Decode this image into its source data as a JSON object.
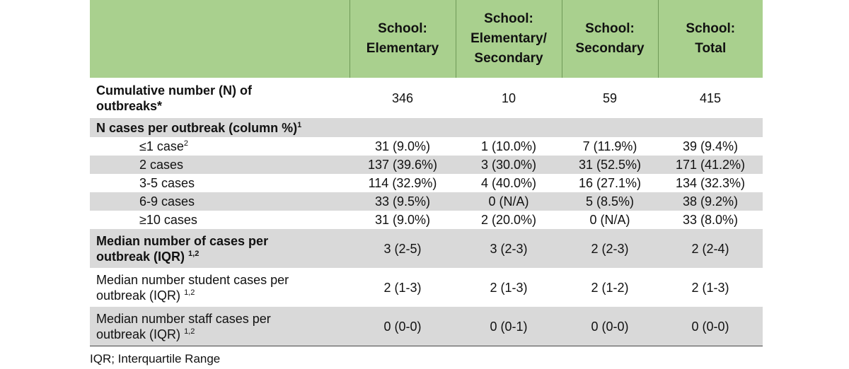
{
  "columns": [
    "",
    "School: Elementary",
    "School: Elementary/ Secondary",
    "School: Secondary",
    "School: Total"
  ],
  "header_lines": [
    [],
    [
      "School:",
      "Elementary"
    ],
    [
      "School:",
      "Elementary/",
      "Secondary"
    ],
    [
      "School:",
      "Secondary"
    ],
    [
      "School:",
      "Total"
    ]
  ],
  "rows": {
    "outbreaks": {
      "label": "Cumulative number (N) of outbreaks*",
      "label_lines": [
        "Cumulative number (N) of",
        "outbreaks*"
      ],
      "values": [
        "346",
        "10",
        "59",
        "415"
      ]
    },
    "cases_section": {
      "label": "N cases per outbreak (column %)",
      "sup": "1"
    },
    "le1": {
      "label": "≤1 case",
      "sup": "2",
      "values": [
        "31 (9.0%)",
        "1 (10.0%)",
        "7 (11.9%)",
        "39 (9.4%)"
      ]
    },
    "two": {
      "label": "2 cases",
      "values": [
        "137 (39.6%)",
        "3 (30.0%)",
        "31 (52.5%)",
        "171 (41.2%)"
      ]
    },
    "three_five": {
      "label": "3-5 cases",
      "values": [
        "114 (32.9%)",
        "4 (40.0%)",
        "16 (27.1%)",
        "134 (32.3%)"
      ]
    },
    "six_nine": {
      "label": "6-9 cases",
      "values": [
        "33 (9.5%)",
        "0 (N/A)",
        "5 (8.5%)",
        "38 (9.2%)"
      ]
    },
    "ge10": {
      "label": "≥10 cases",
      "values": [
        "31 (9.0%)",
        "2 (20.0%)",
        "0 (N/A)",
        "33 (8.0%)"
      ]
    },
    "median_cases": {
      "label_line1": "Median number of cases per",
      "label_line2": "outbreak  (IQR)",
      "sup": "1,2",
      "values": [
        "3 (2-5)",
        "3 (2-3)",
        "2 (2-3)",
        "2 (2-4)"
      ]
    },
    "median_student": {
      "label_line1": "Median number student cases per",
      "label_line2": "outbreak (IQR)",
      "sup": "1,2",
      "values": [
        "2 (1-3)",
        "2 (1-3)",
        "2 (1-2)",
        "2 (1-3)"
      ]
    },
    "median_staff": {
      "label_line1": "Median number staff cases per",
      "label_line2": "outbreak (IQR)",
      "sup": "1,2",
      "values": [
        "0 (0-0)",
        "0 (0-1)",
        "0 (0-0)",
        "0 (0-0)"
      ]
    }
  },
  "footnote": "IQR; Interquartile Range"
}
